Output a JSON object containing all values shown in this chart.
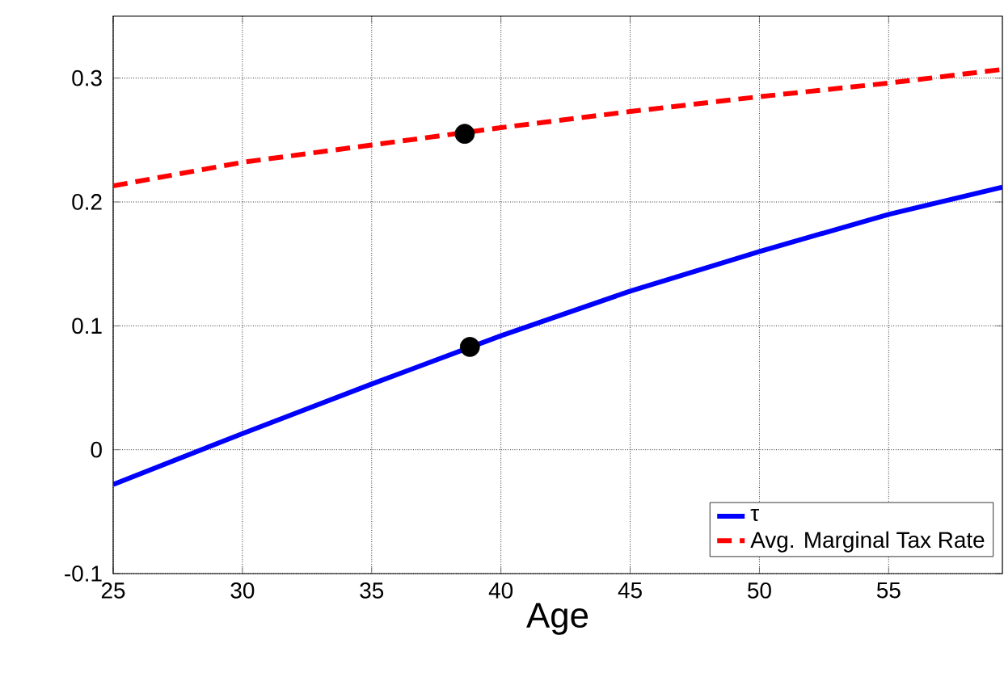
{
  "chart_data": {
    "type": "line",
    "xlabel": "Age",
    "xlim": [
      25,
      59.4
    ],
    "xticks": [
      25,
      30,
      35,
      40,
      45,
      50,
      55
    ],
    "ylim": [
      -0.1,
      0.35
    ],
    "yticks": [
      -0.1,
      0,
      0.1,
      0.2,
      0.3
    ],
    "grid": true,
    "legend": "bottom right",
    "series": [
      {
        "name": "τ",
        "color": "#0000ff",
        "line_style": "solid",
        "x": [
          25,
          30,
          35,
          40,
          45,
          50,
          55,
          59.4
        ],
        "values": [
          -0.028,
          0.013,
          0.053,
          0.092,
          0.128,
          0.16,
          0.19,
          0.212
        ]
      },
      {
        "name": "Avg. Marginal Tax Rate",
        "color": "#ff0000",
        "line_style": "dashed",
        "x": [
          25,
          30,
          35,
          40,
          45,
          50,
          55,
          59.4
        ],
        "values": [
          0.213,
          0.232,
          0.246,
          0.26,
          0.273,
          0.285,
          0.296,
          0.307
        ]
      },
      {
        "type": "scatter",
        "color": "#000000",
        "marker": "circle",
        "x": [
          38.6,
          38.8
        ],
        "values": [
          0.255,
          0.083
        ]
      }
    ]
  }
}
